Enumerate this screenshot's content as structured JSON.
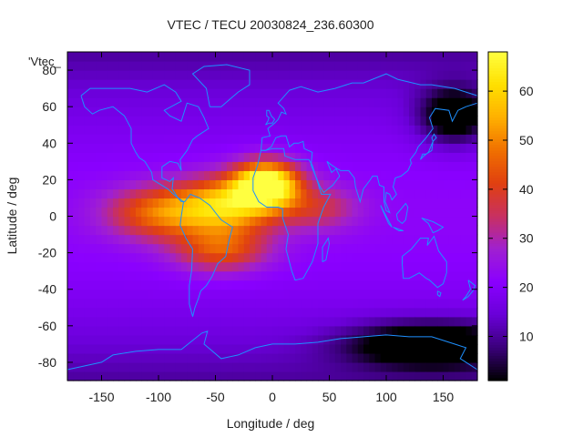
{
  "chart_data": {
    "type": "heatmap",
    "title": "VTEC / TECU 20030824_236.60300",
    "xlabel": "Longitude / deg",
    "ylabel": "Latitude / deg",
    "key_label": "'Vtec_",
    "xlim": [
      -180,
      180
    ],
    "ylim": [
      -90,
      90
    ],
    "x_ticks": [
      -150,
      -100,
      -50,
      0,
      50,
      100,
      150
    ],
    "y_ticks": [
      -80,
      -60,
      -40,
      -20,
      0,
      20,
      40,
      60,
      80
    ],
    "colorbar": {
      "range": [
        1,
        68
      ],
      "ticks": [
        10,
        20,
        30,
        40,
        50,
        60
      ],
      "palette": [
        "#000000",
        "#3a007a",
        "#6a00d8",
        "#8a00ff",
        "#a020d0",
        "#c83060",
        "#e04010",
        "#f07000",
        "#ffb000",
        "#ffe000",
        "#ffff40"
      ]
    },
    "grid_resolution_deg": [
      5,
      5
    ],
    "vtec_features": [
      {
        "lon": -5,
        "lat": 18,
        "peak": 67,
        "sx": 28,
        "sy": 12
      },
      {
        "lon": -40,
        "lat": 6,
        "peak": 52,
        "sx": 45,
        "sy": 15
      },
      {
        "lon": -100,
        "lat": 2,
        "peak": 40,
        "sx": 45,
        "sy": 14
      },
      {
        "lon": -45,
        "lat": -18,
        "peak": 38,
        "sx": 40,
        "sy": 12
      },
      {
        "lon": 40,
        "lat": 5,
        "peak": 30,
        "sx": 35,
        "sy": 12
      },
      {
        "lon": 140,
        "lat": -70,
        "peak": -10,
        "sx": 70,
        "sy": 12
      },
      {
        "lon": 160,
        "lat": 55,
        "peak": -8,
        "sx": 30,
        "sy": 15
      }
    ],
    "background_vtec": 16,
    "grid": false,
    "coastlines": true,
    "coastline_color": "#1e90ff"
  }
}
